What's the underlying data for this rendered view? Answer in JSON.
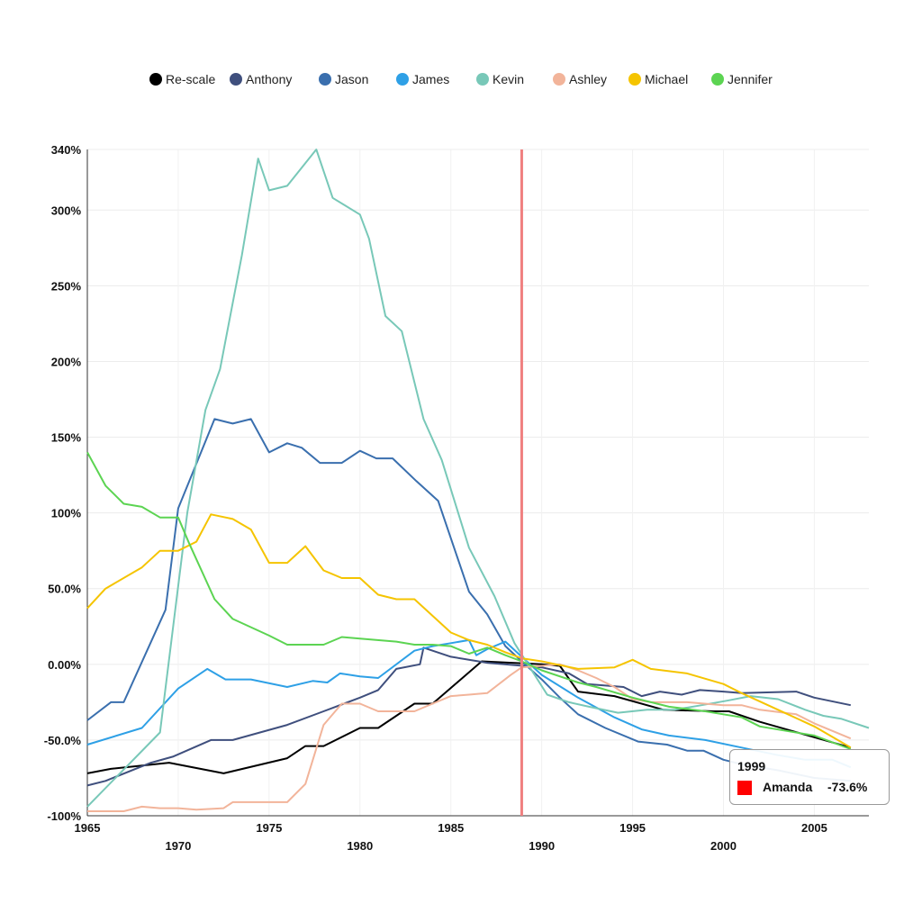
{
  "chart_data": {
    "type": "line",
    "xlim": [
      1965,
      2008
    ],
    "ylim": [
      -100,
      340
    ],
    "x_ticks_top": [
      1965,
      1975,
      1985,
      1995,
      2005
    ],
    "x_ticks_bottom": [
      1970,
      1980,
      1990,
      2000
    ],
    "y_ticks": [
      {
        "value": 340,
        "label": "340%"
      },
      {
        "value": 300,
        "label": "300%"
      },
      {
        "value": 250,
        "label": "250%"
      },
      {
        "value": 200,
        "label": "200%"
      },
      {
        "value": 150,
        "label": "150%"
      },
      {
        "value": 100,
        "label": "100%"
      },
      {
        "value": 50,
        "label": "50.0%"
      },
      {
        "value": 0,
        "label": "0.00%"
      },
      {
        "value": -50,
        "label": "-50.0%"
      },
      {
        "value": -100,
        "label": "-100%"
      }
    ],
    "grid": true,
    "legend_position": "top-center",
    "reference_line": {
      "x": 1988.9,
      "color": "#f08080"
    },
    "series": [
      {
        "name": "Re-scale",
        "color": "#000000",
        "points": [
          [
            1965,
            -72
          ],
          [
            1966.3,
            -69
          ],
          [
            1969.5,
            -65
          ],
          [
            1972.5,
            -72
          ],
          [
            1976,
            -62
          ],
          [
            1977,
            -54
          ],
          [
            1978,
            -54
          ],
          [
            1980,
            -42
          ],
          [
            1981,
            -42
          ],
          [
            1983,
            -26
          ],
          [
            1984,
            -26
          ],
          [
            1986.7,
            2
          ],
          [
            1990,
            0
          ],
          [
            1991,
            -1
          ],
          [
            1992,
            -18
          ],
          [
            1994,
            -21
          ],
          [
            1996.7,
            -30
          ],
          [
            1999.5,
            -31
          ],
          [
            2000.3,
            -31
          ],
          [
            2002,
            -38
          ],
          [
            2007,
            -55
          ]
        ]
      },
      {
        "name": "Anthony",
        "color": "#3f4f7d",
        "points": [
          [
            1965,
            -80
          ],
          [
            1966,
            -77
          ],
          [
            1968.5,
            -65
          ],
          [
            1969.7,
            -61
          ],
          [
            1971.8,
            -50
          ],
          [
            1973,
            -50
          ],
          [
            1976,
            -40
          ],
          [
            1978,
            -31
          ],
          [
            1980,
            -22
          ],
          [
            1981,
            -17
          ],
          [
            1982,
            -3
          ],
          [
            1983.3,
            0
          ],
          [
            1983.5,
            11
          ],
          [
            1985,
            5
          ],
          [
            1987,
            1
          ],
          [
            1990,
            -2
          ],
          [
            1991.5,
            -6
          ],
          [
            1992.5,
            -13
          ],
          [
            1994.5,
            -15
          ],
          [
            1995.5,
            -21
          ],
          [
            1996.5,
            -18
          ],
          [
            1997.7,
            -20
          ],
          [
            1998.7,
            -17
          ],
          [
            2000,
            -18
          ],
          [
            2001,
            -19
          ],
          [
            2004,
            -18
          ],
          [
            2005,
            -22
          ],
          [
            2007,
            -27
          ]
        ]
      },
      {
        "name": "Jason",
        "color": "#3a6fae",
        "points": [
          [
            1965,
            -37
          ],
          [
            1966.3,
            -25
          ],
          [
            1967,
            -25
          ],
          [
            1969.3,
            36
          ],
          [
            1970,
            103
          ],
          [
            1972,
            162
          ],
          [
            1973,
            159
          ],
          [
            1974,
            162
          ],
          [
            1975,
            140
          ],
          [
            1976,
            146
          ],
          [
            1976.8,
            143
          ],
          [
            1977.8,
            133
          ],
          [
            1979,
            133
          ],
          [
            1980,
            141
          ],
          [
            1980.9,
            136
          ],
          [
            1981.8,
            136
          ],
          [
            1983.1,
            121
          ],
          [
            1984.3,
            108
          ],
          [
            1986,
            48
          ],
          [
            1987,
            33
          ],
          [
            1988,
            12
          ],
          [
            1988.9,
            2
          ],
          [
            1990,
            -10
          ],
          [
            1991,
            -22
          ],
          [
            1992,
            -33
          ],
          [
            1993.5,
            -42
          ],
          [
            1995.3,
            -51
          ],
          [
            1996.9,
            -53
          ],
          [
            1998,
            -57
          ],
          [
            1998.9,
            -57
          ],
          [
            2000,
            -63
          ],
          [
            2001,
            -66
          ],
          [
            2003,
            -70
          ],
          [
            2005,
            -75
          ],
          [
            2007,
            -77
          ]
        ]
      },
      {
        "name": "James",
        "color": "#2ea0e6",
        "points": [
          [
            1965,
            -53
          ],
          [
            1968,
            -42
          ],
          [
            1970,
            -16
          ],
          [
            1971.6,
            -3
          ],
          [
            1972.6,
            -10
          ],
          [
            1974,
            -10
          ],
          [
            1976,
            -15
          ],
          [
            1977.4,
            -11
          ],
          [
            1978.2,
            -12
          ],
          [
            1978.9,
            -6
          ],
          [
            1980,
            -8
          ],
          [
            1981,
            -9
          ],
          [
            1983,
            9
          ],
          [
            1984,
            12
          ],
          [
            1985,
            14
          ],
          [
            1986,
            16
          ],
          [
            1986.4,
            6
          ],
          [
            1987,
            10
          ],
          [
            1988,
            15
          ],
          [
            1988.9,
            5
          ],
          [
            1990,
            -7
          ],
          [
            1992,
            -22
          ],
          [
            1994,
            -35
          ],
          [
            1995.5,
            -43
          ],
          [
            1997,
            -47
          ],
          [
            1999,
            -50
          ],
          [
            2001,
            -55
          ],
          [
            2003,
            -60
          ],
          [
            2004.5,
            -63
          ],
          [
            2006,
            -63
          ],
          [
            2007,
            -68
          ]
        ]
      },
      {
        "name": "Kevin",
        "color": "#78c8b8",
        "points": [
          [
            1965,
            -94
          ],
          [
            1969,
            -45
          ],
          [
            1970.5,
            100
          ],
          [
            1971.5,
            168
          ],
          [
            1972.3,
            195
          ],
          [
            1973.5,
            270
          ],
          [
            1974.4,
            334
          ],
          [
            1975,
            313
          ],
          [
            1976,
            316
          ],
          [
            1977.6,
            340
          ],
          [
            1978.5,
            308
          ],
          [
            1980,
            297
          ],
          [
            1980.5,
            281
          ],
          [
            1981.4,
            230
          ],
          [
            1982.3,
            220
          ],
          [
            1983.5,
            162
          ],
          [
            1984.5,
            135
          ],
          [
            1986,
            77
          ],
          [
            1987.4,
            45
          ],
          [
            1988.5,
            14
          ],
          [
            1990.3,
            -20
          ],
          [
            1991.5,
            -25
          ],
          [
            1992.6,
            -28
          ],
          [
            1994.2,
            -32
          ],
          [
            1995.8,
            -30
          ],
          [
            1997.3,
            -30
          ],
          [
            1998.8,
            -27
          ],
          [
            2000.2,
            -24
          ],
          [
            2001.5,
            -21
          ],
          [
            2003,
            -23
          ],
          [
            2004.5,
            -30
          ],
          [
            2005.5,
            -34
          ],
          [
            2006.5,
            -36
          ],
          [
            2008,
            -42
          ]
        ]
      },
      {
        "name": "Ashley",
        "color": "#f2b49a",
        "points": [
          [
            1965,
            -97
          ],
          [
            1967,
            -97
          ],
          [
            1968,
            -94
          ],
          [
            1969,
            -95
          ],
          [
            1970,
            -95
          ],
          [
            1971,
            -96
          ],
          [
            1972.5,
            -95
          ],
          [
            1973,
            -91
          ],
          [
            1975,
            -91
          ],
          [
            1976,
            -91
          ],
          [
            1977,
            -79
          ],
          [
            1978,
            -40
          ],
          [
            1979,
            -26
          ],
          [
            1980,
            -26
          ],
          [
            1981,
            -31
          ],
          [
            1982,
            -31
          ],
          [
            1983,
            -31
          ],
          [
            1984,
            -26
          ],
          [
            1985,
            -21
          ],
          [
            1986,
            -20
          ],
          [
            1987,
            -19
          ],
          [
            1988.3,
            -7
          ],
          [
            1988.9,
            -2
          ],
          [
            1990,
            -1
          ],
          [
            1991,
            0
          ],
          [
            1992,
            -4
          ],
          [
            1993,
            -9
          ],
          [
            1994,
            -15
          ],
          [
            1995,
            -23
          ],
          [
            1996,
            -25
          ],
          [
            1997,
            -25
          ],
          [
            1998,
            -25
          ],
          [
            2000,
            -27
          ],
          [
            2001,
            -27
          ],
          [
            2002,
            -30
          ],
          [
            2004,
            -33
          ],
          [
            2005,
            -39
          ],
          [
            2006,
            -44
          ],
          [
            2007,
            -49
          ]
        ]
      },
      {
        "name": "Michael",
        "color": "#f5c400",
        "points": [
          [
            1965,
            37
          ],
          [
            1966,
            50
          ],
          [
            1968,
            64
          ],
          [
            1969,
            75
          ],
          [
            1970,
            75
          ],
          [
            1971,
            81
          ],
          [
            1971.8,
            99
          ],
          [
            1973,
            96
          ],
          [
            1974,
            89
          ],
          [
            1975,
            67
          ],
          [
            1976,
            67
          ],
          [
            1977,
            78
          ],
          [
            1978,
            62
          ],
          [
            1979,
            57
          ],
          [
            1980,
            57
          ],
          [
            1981,
            46
          ],
          [
            1982,
            43
          ],
          [
            1983,
            43
          ],
          [
            1984,
            32
          ],
          [
            1985,
            21
          ],
          [
            1986,
            16
          ],
          [
            1987,
            13
          ],
          [
            1988,
            8
          ],
          [
            1988.9,
            4
          ],
          [
            1990,
            2
          ],
          [
            1992,
            -3
          ],
          [
            1994,
            -2
          ],
          [
            1995,
            3
          ],
          [
            1996,
            -3
          ],
          [
            1998,
            -6
          ],
          [
            2000,
            -13
          ],
          [
            2001,
            -19
          ],
          [
            2003,
            -30
          ],
          [
            2005,
            -41
          ],
          [
            2007,
            -55
          ]
        ]
      },
      {
        "name": "Jennifer",
        "color": "#5cd452",
        "points": [
          [
            1965,
            140
          ],
          [
            1966,
            118
          ],
          [
            1967,
            106
          ],
          [
            1968,
            104
          ],
          [
            1969,
            97
          ],
          [
            1970,
            97
          ],
          [
            1970.6,
            80
          ],
          [
            1972,
            43
          ],
          [
            1973,
            30
          ],
          [
            1975,
            19
          ],
          [
            1976,
            13
          ],
          [
            1977,
            13
          ],
          [
            1978,
            13
          ],
          [
            1979,
            18
          ],
          [
            1980,
            17
          ],
          [
            1982,
            15
          ],
          [
            1983,
            13
          ],
          [
            1984,
            13
          ],
          [
            1985,
            12
          ],
          [
            1986,
            7
          ],
          [
            1987,
            11
          ],
          [
            1988,
            6
          ],
          [
            1988.9,
            2
          ],
          [
            1990,
            -4
          ],
          [
            1992,
            -12
          ],
          [
            1993,
            -15
          ],
          [
            1995,
            -22
          ],
          [
            1997,
            -28
          ],
          [
            1999,
            -31
          ],
          [
            2001,
            -35
          ],
          [
            2002,
            -41
          ],
          [
            2005,
            -47
          ],
          [
            2007,
            -56
          ]
        ]
      }
    ],
    "tooltip": {
      "title": "1999",
      "name": "Amanda",
      "value": "-73.6%",
      "color": "#ff0000"
    }
  }
}
